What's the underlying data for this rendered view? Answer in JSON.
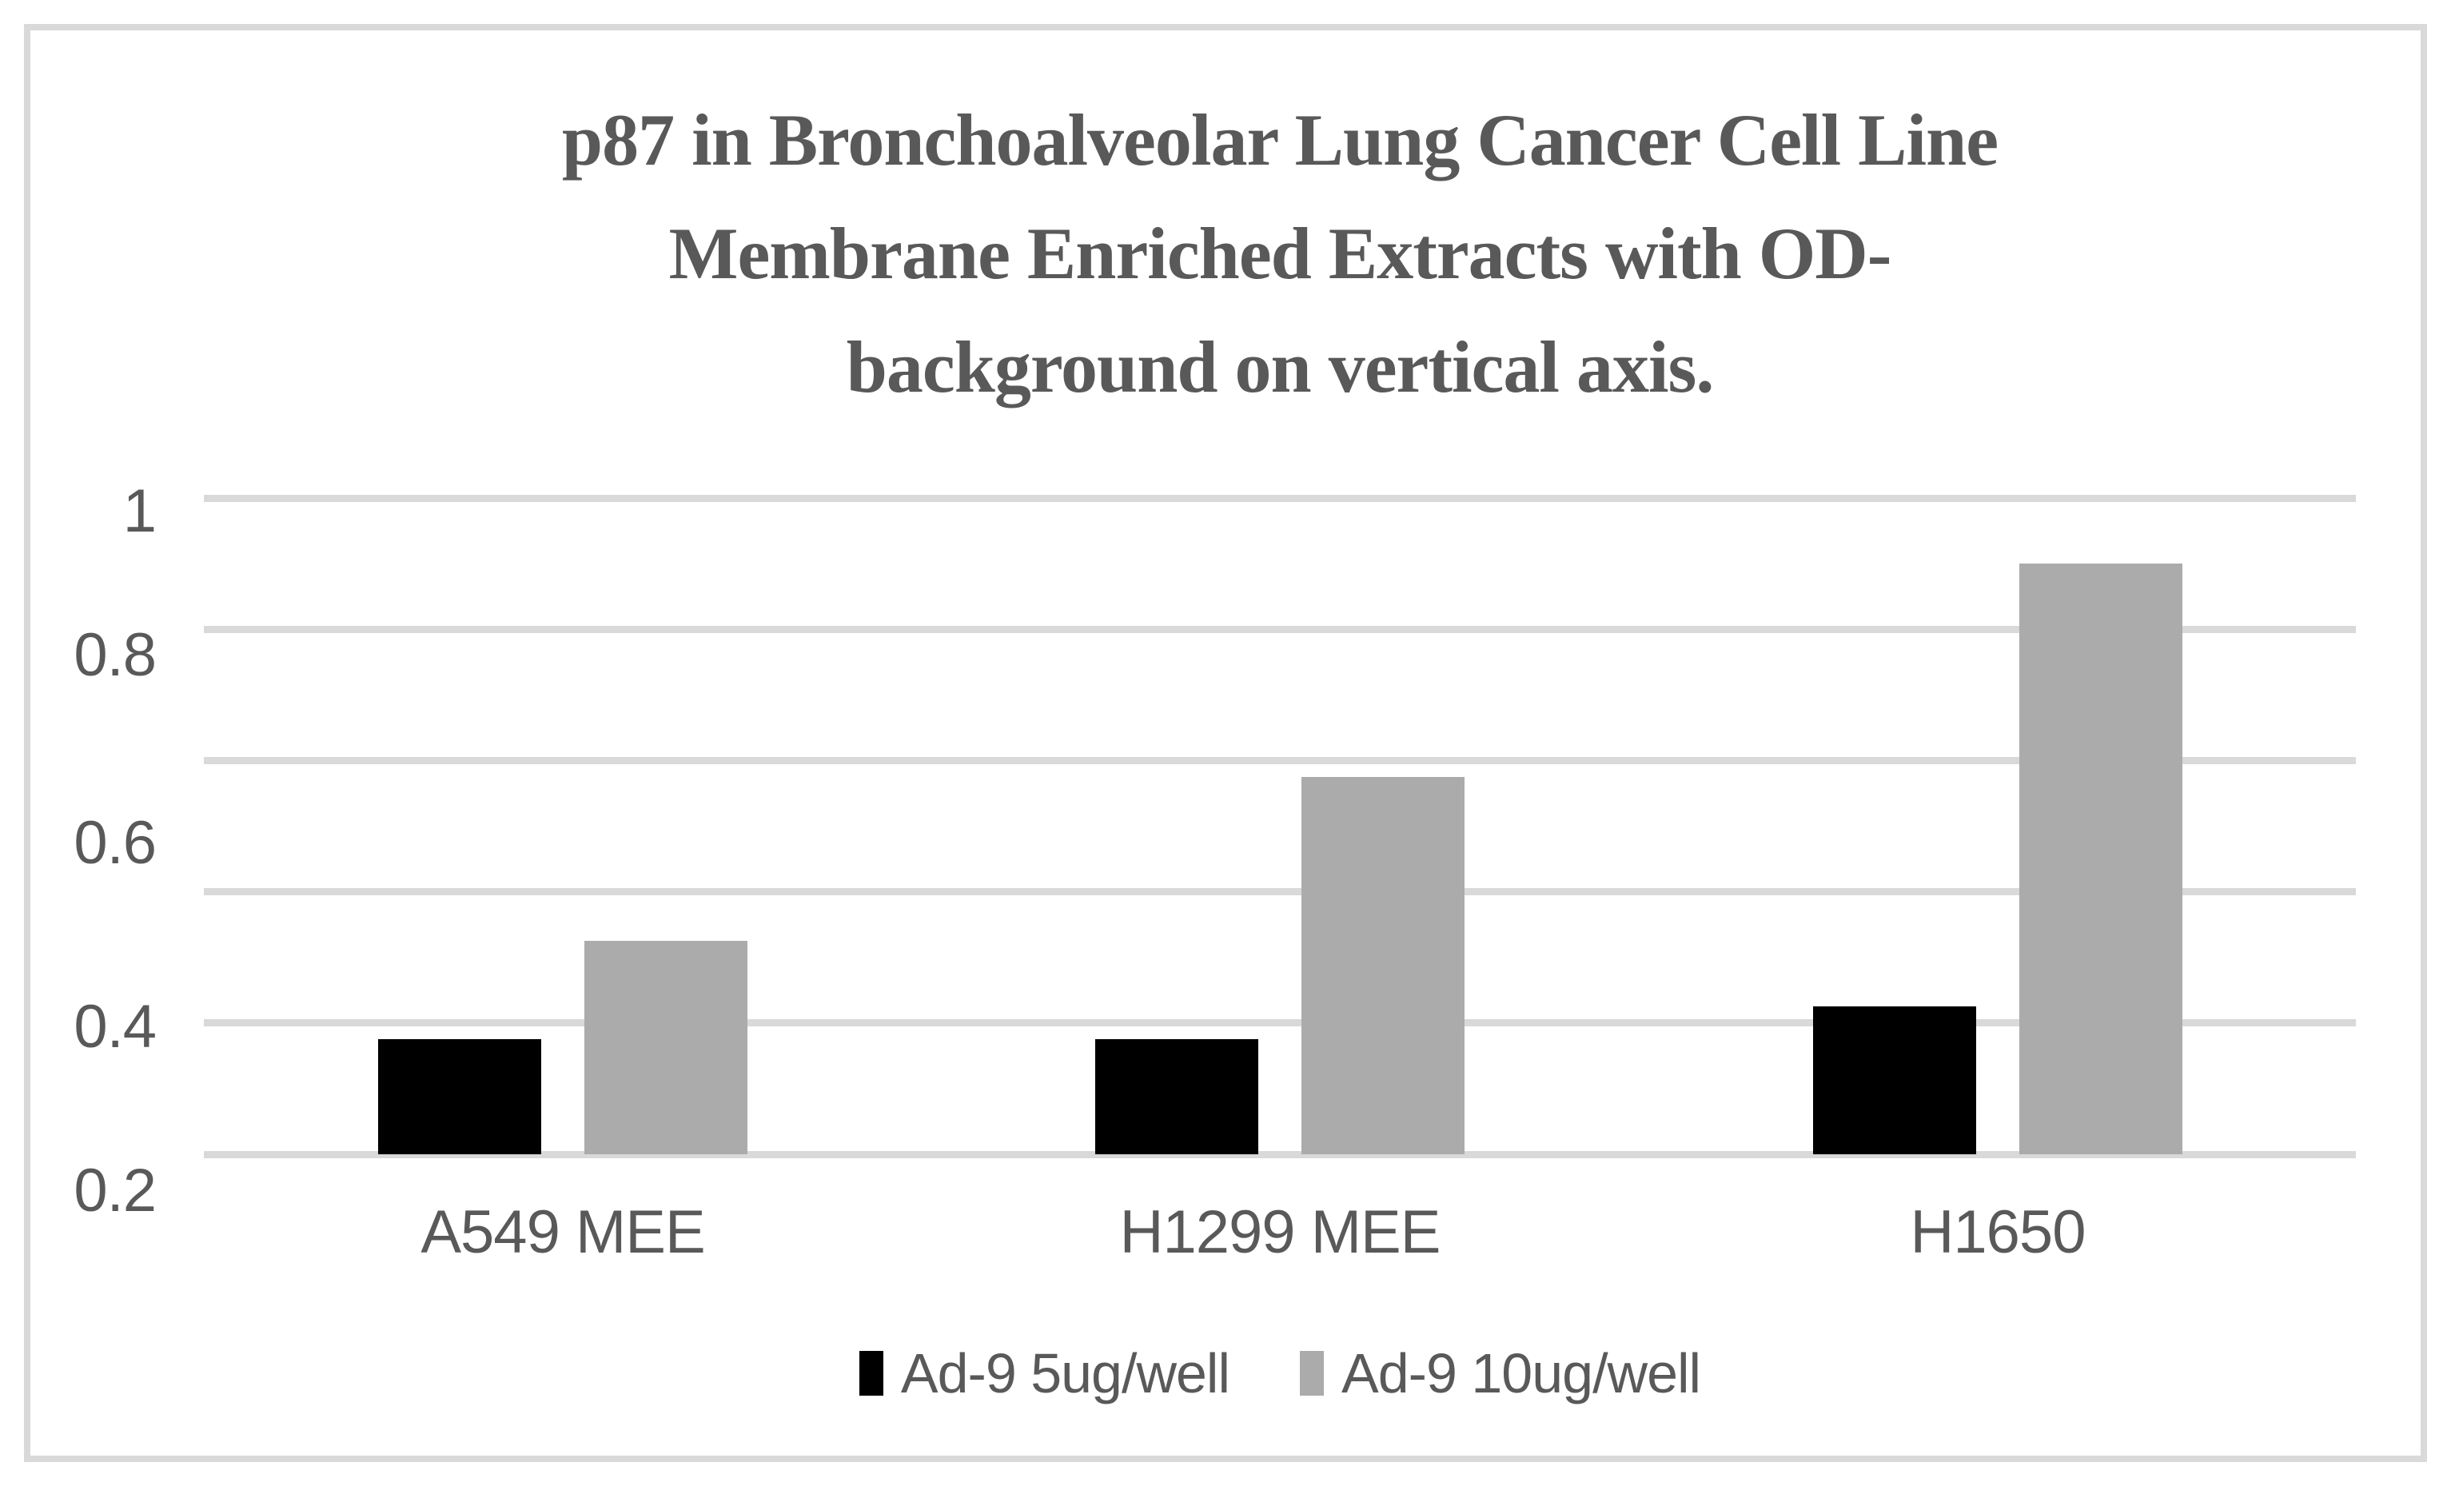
{
  "figure": {
    "background": "#ffffff",
    "border_color": "#d9d9d9",
    "text_color": "#595959",
    "gridline_color": "#d9d9d9"
  },
  "chart_data": {
    "type": "bar",
    "title": "p87 in Bronchoalveolar Lung Cancer Cell Line Membrane Enriched Extracts with OD-background on vertical axis.",
    "title_lines": [
      "p87 in Bronchoalveolar Lung Cancer Cell Line",
      "Membrane Enriched Extracts with OD-",
      "background on vertical axis."
    ],
    "categories": [
      "A549 MEE",
      "H1299 MEE",
      "H1650"
    ],
    "series": [
      {
        "name": "Ad-9 5ug/well",
        "color": "#000000",
        "values": [
          0.34,
          0.34,
          0.38
        ]
      },
      {
        "name": "Ad-9 10ug/well",
        "color": "#ababab",
        "values": [
          0.46,
          0.66,
          0.92
        ]
      }
    ],
    "xlabel": "",
    "ylabel": "",
    "y_axis": {
      "min": 0.2,
      "max": 1.0,
      "tick_labels": [
        "1",
        "0.8",
        "0.6",
        "0.4",
        "0.2"
      ],
      "gridline_count": 6
    },
    "grid": true,
    "legend_position": "bottom"
  }
}
